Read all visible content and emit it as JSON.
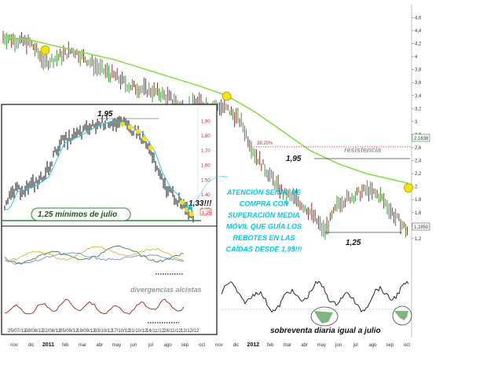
{
  "chart_data": [
    {
      "type": "line",
      "panel": "main price chart",
      "x_ticks": [
        "nov",
        "dic",
        "2011",
        "feb",
        "mar",
        "abr",
        "may",
        "jun",
        "jul",
        "ago",
        "sep",
        "oct",
        "nov",
        "dic",
        "2012",
        "feb",
        "mar",
        "abr",
        "may",
        "jun",
        "jul",
        "ago",
        "sep",
        "oct"
      ],
      "y_ticks": [
        "4,6",
        "4,4",
        "4,2",
        "4",
        "3,8",
        "3,6",
        "3,4",
        "3,2",
        "3",
        "2,8",
        "2,6",
        "2,4",
        "2,2",
        "2",
        "1,8",
        "1,6",
        "1,4",
        "1,2"
      ],
      "y_range": [
        1.15,
        4.75
      ],
      "price_marker": "1,2850",
      "ma_marker": "2,1638",
      "fibo_label": "38,20%",
      "resistance_label": "resistencia",
      "level_high_label": "1,95",
      "level_low_label": "1,25",
      "price_series": [
        [
          0,
          4.3
        ],
        [
          1,
          4.25
        ],
        [
          2,
          4.2
        ],
        [
          3,
          3.9
        ],
        [
          4,
          4.0
        ],
        [
          5,
          4.1
        ],
        [
          6,
          3.95
        ],
        [
          7,
          3.8
        ],
        [
          8,
          3.7
        ],
        [
          9,
          3.55
        ],
        [
          10,
          3.5
        ],
        [
          11,
          3.45
        ],
        [
          12,
          3.35
        ],
        [
          13,
          3.2
        ],
        [
          14,
          3.3
        ],
        [
          15,
          3.25
        ],
        [
          16,
          3.2
        ],
        [
          17,
          3.0
        ],
        [
          18,
          2.5
        ],
        [
          19,
          2.2
        ],
        [
          20,
          1.9
        ],
        [
          21,
          1.8
        ],
        [
          22,
          1.6
        ],
        [
          23,
          1.3
        ],
        [
          24,
          1.75
        ],
        [
          25,
          1.85
        ],
        [
          26,
          1.95
        ],
        [
          27,
          1.85
        ],
        [
          28,
          1.55
        ],
        [
          29,
          1.3
        ]
      ],
      "moving_average": [
        [
          0,
          4.3
        ],
        [
          2,
          4.25
        ],
        [
          5,
          4.1
        ],
        [
          8,
          3.95
        ],
        [
          11,
          3.75
        ],
        [
          14,
          3.55
        ],
        [
          16,
          3.4
        ],
        [
          18,
          3.15
        ],
        [
          20,
          2.85
        ],
        [
          22,
          2.55
        ],
        [
          24,
          2.35
        ],
        [
          26,
          2.2
        ],
        [
          28,
          2.1
        ],
        [
          29,
          2.05
        ]
      ],
      "yellow_signal_points": [
        [
          3,
          4.1
        ],
        [
          16,
          3.39
        ],
        [
          29,
          1.98
        ]
      ]
    },
    {
      "type": "line",
      "panel": "inset price chart",
      "x_ticks": [
        "25/07/12",
        "08/08/12",
        "22/08/12",
        "05/09/12",
        "19/09/12",
        "03/10/12",
        "17/10/12",
        "31/10/12",
        "14/11/12",
        "28/11/12",
        "12/12/12"
      ],
      "y_ticks": [
        "1,90",
        "1,80",
        "1,70",
        "1,60",
        "1,50",
        "1,40",
        "1,30"
      ],
      "level_high_label": "1,95",
      "level_low_label": "1,33!!!",
      "price_marker": "1,25",
      "support_label": "1,25 mínimos de julio"
    },
    {
      "type": "line",
      "panel": "oscillator",
      "label": "sobreventa diaria igual a julio"
    }
  ],
  "annotations": {
    "divergences": "divergencias alcistas",
    "signal": "ATENCIÓN SEÑAL DE COMPRA CON SUPERACIÓN MEDIA MÓVIL QUE GUÍA LOS REBOTES EN LAS CAÍDAS DESDE 1,95!!!",
    "signal_lines": [
      "ATENCIÓN SEÑAL DE",
      "COMPRA CON",
      "SUPERACIÓN MEDIA",
      "MÓVIL QUE GUÍA LOS",
      "REBOTES EN LAS",
      "CAÍDAS DESDE 1,95!!!"
    ]
  },
  "colors": {
    "moving_average": "#7be03a",
    "signal_dot": "#f5e400",
    "callout_text": "#00c8e8",
    "fibo_line": "#d02020",
    "inset_green": "#2a8a2a"
  }
}
